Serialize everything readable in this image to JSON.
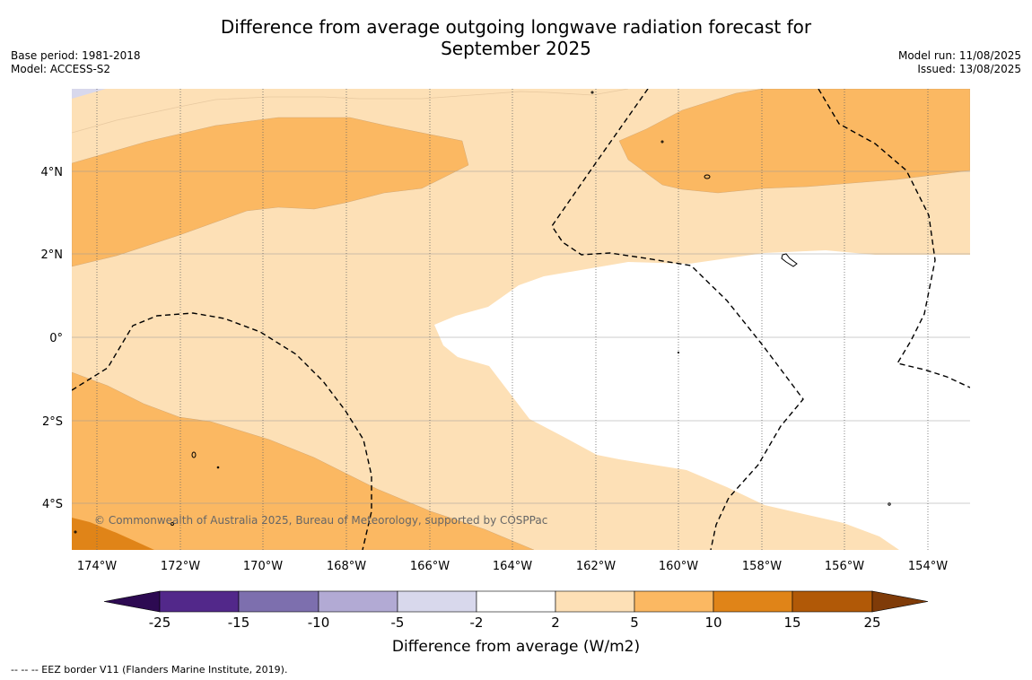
{
  "title_line1": "Difference from average outgoing longwave radiation forecast for",
  "title_line2": "September 2025",
  "base_period": "Base period: 1981-2018",
  "model": "Model: ACCESS-S2",
  "model_run": "Model run: 11/08/2025",
  "issued": "Issued: 13/08/2025",
  "copyright": "© Commonwealth of Australia 2025, Bureau of Meteorology, supported by COSPPac",
  "footer_note": "-- -- -- EEZ border V11 (Flanders Marine Institute, 2019).",
  "map": {
    "lon_labels": [
      "174°W",
      "172°W",
      "170°W",
      "168°W",
      "166°W",
      "164°W",
      "162°W",
      "160°W",
      "158°W",
      "156°W",
      "154°W"
    ],
    "lat_labels": [
      "4°N",
      "2°N",
      "0°",
      "2°S",
      "4°S"
    ]
  },
  "colorbar": {
    "title": "Difference from average (W/m2)",
    "tick_labels": [
      "-25",
      "-15",
      "-10",
      "-5",
      "-2",
      "2",
      "5",
      "10",
      "15",
      "25"
    ],
    "colors": [
      "#2d0a52",
      "#52288a",
      "#7d6fae",
      "#b2aad4",
      "#d8d8ec",
      "#ffffff",
      "#fde0b6",
      "#fbb862",
      "#e08418",
      "#b15907",
      "#7f3b08"
    ]
  }
}
